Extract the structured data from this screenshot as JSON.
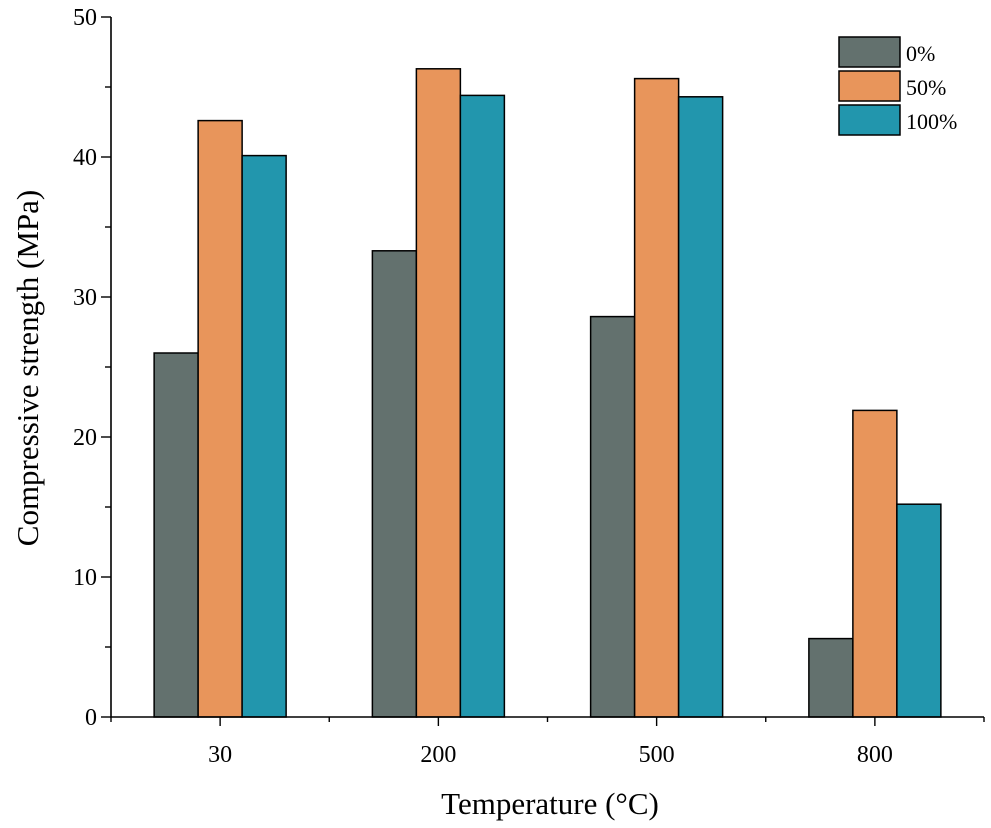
{
  "chart_data": {
    "type": "bar",
    "title": "",
    "xlabel": "Temperature (°C)",
    "ylabel": "Compressive strength (MPa)",
    "categories": [
      "30",
      "200",
      "500",
      "800"
    ],
    "ylim": [
      0,
      50
    ],
    "y_ticks": [
      0,
      10,
      20,
      30,
      40,
      50
    ],
    "y_minor_step": 5,
    "legend_position": "top-right",
    "series": [
      {
        "name": "0%",
        "color": "#63716e",
        "values": [
          26.0,
          33.3,
          28.6,
          5.6
        ]
      },
      {
        "name": "50%",
        "color": "#e8955b",
        "values": [
          42.6,
          46.3,
          45.6,
          21.9
        ]
      },
      {
        "name": "100%",
        "color": "#2296ad",
        "values": [
          40.1,
          44.4,
          44.3,
          15.2
        ]
      }
    ]
  }
}
